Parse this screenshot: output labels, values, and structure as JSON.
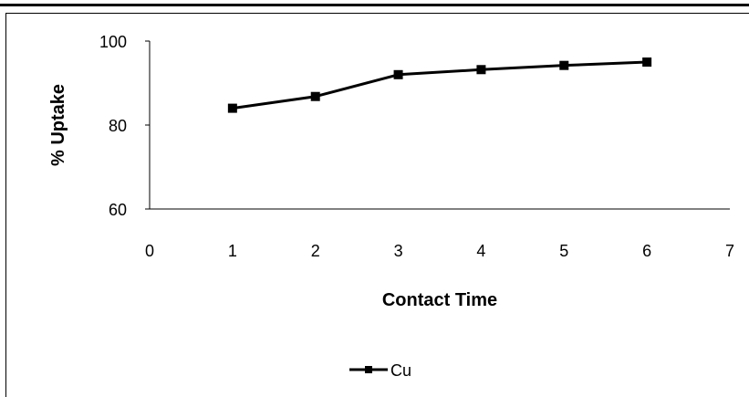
{
  "chart_data": {
    "type": "line",
    "title": "",
    "xlabel": "Contact Time",
    "ylabel": "% Uptake",
    "xlim": [
      0,
      7
    ],
    "ylim": [
      60,
      100
    ],
    "x_ticks": [
      "0",
      "1",
      "2",
      "3",
      "4",
      "5",
      "6",
      "7"
    ],
    "y_ticks": [
      "60",
      "80",
      "100"
    ],
    "grid": false,
    "legend_position": "bottom",
    "series": [
      {
        "name": "Cu",
        "x": [
          1,
          2,
          3,
          4,
          5,
          6
        ],
        "values": [
          84,
          86.8,
          92,
          93.2,
          94.2,
          95
        ],
        "color": "#000000",
        "marker": "square"
      }
    ]
  }
}
